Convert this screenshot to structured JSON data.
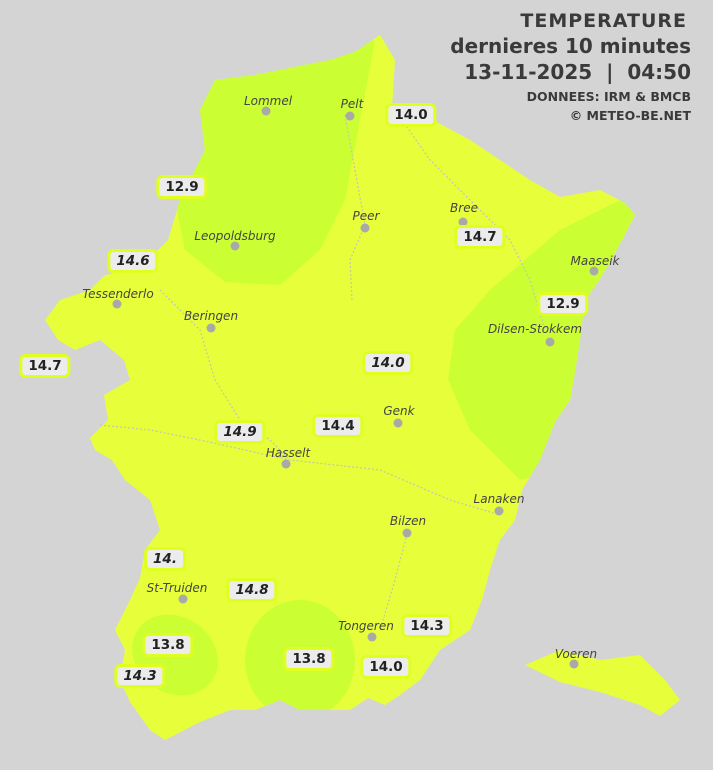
{
  "header": {
    "title": "TEMPERATURE",
    "subtitle": "dernieres 10 minutes",
    "datetime": "13-11-2025  |  04:50",
    "source": "DONNEES: IRM & BMCB",
    "copyright": "© METEO-BE.NET"
  },
  "colors": {
    "background": "#d4d4d4",
    "province": "#e6ff3a",
    "cooler_zone": "#ccff33",
    "label_border": "#e0ff20"
  },
  "towns": [
    {
      "name": "Lommel"
    },
    {
      "name": "Pelt"
    },
    {
      "name": "Peer"
    },
    {
      "name": "Bree"
    },
    {
      "name": "Leopoldsburg"
    },
    {
      "name": "Maaseik"
    },
    {
      "name": "Tessenderlo"
    },
    {
      "name": "Beringen"
    },
    {
      "name": "Dilsen-Stokkem"
    },
    {
      "name": "Genk"
    },
    {
      "name": "Hasselt"
    },
    {
      "name": "Lanaken"
    },
    {
      "name": "Bilzen"
    },
    {
      "name": "St-Truiden"
    },
    {
      "name": "Tongeren"
    },
    {
      "name": "Voeren"
    }
  ],
  "readings": [
    {
      "value": "14.0",
      "italic": false
    },
    {
      "value": "12.9",
      "italic": false
    },
    {
      "value": "14.7",
      "italic": false
    },
    {
      "value": "14.6",
      "italic": true
    },
    {
      "value": "12.9",
      "italic": false
    },
    {
      "value": "14.7",
      "italic": false
    },
    {
      "value": "14.0",
      "italic": true
    },
    {
      "value": "14.4",
      "italic": false
    },
    {
      "value": "14.9",
      "italic": true
    },
    {
      "value": "14.",
      "italic": true
    },
    {
      "value": "14.8",
      "italic": true
    },
    {
      "value": "13.8",
      "italic": false
    },
    {
      "value": "14.3",
      "italic": true
    },
    {
      "value": "13.8",
      "italic": false
    },
    {
      "value": "14.3",
      "italic": false
    },
    {
      "value": "14.0",
      "italic": false
    }
  ]
}
